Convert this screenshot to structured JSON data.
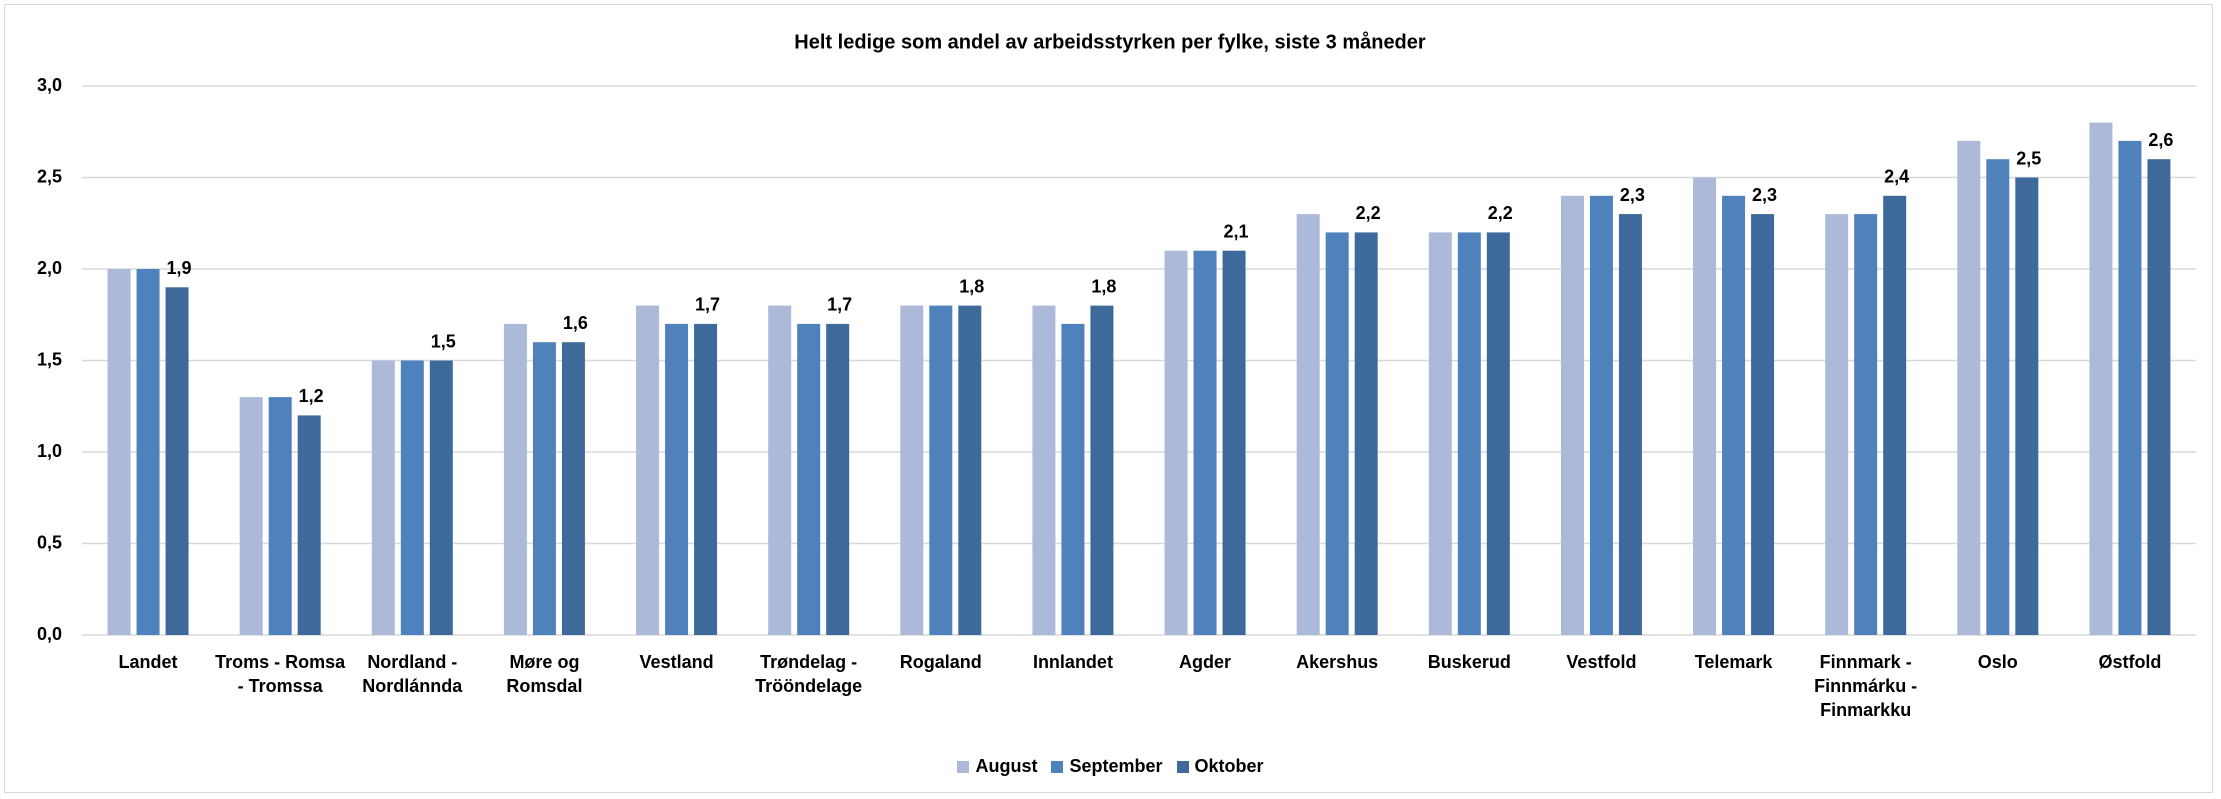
{
  "chart_data": {
    "type": "bar",
    "title": "Helt ledige som andel av arbeidsstyrken per fylke, siste 3 måneder",
    "categories": [
      "Landet",
      "Troms - Romsa - Tromssa",
      "Nordland - Nordlánnda",
      "Møre og Romsdal",
      "Vestland",
      "Trøndelag - Trööndelage",
      "Rogaland",
      "Innlandet",
      "Agder",
      "Akershus",
      "Buskerud",
      "Vestfold",
      "Telemark",
      "Finnmark - Finnmárku - Finmarkku",
      "Oslo",
      "Østfold"
    ],
    "series": [
      {
        "name": "August",
        "color": "#adb9d8",
        "values": [
          2.0,
          1.3,
          1.5,
          1.7,
          1.8,
          1.8,
          1.8,
          1.8,
          2.1,
          2.3,
          2.2,
          2.4,
          2.5,
          2.3,
          2.7,
          2.8
        ]
      },
      {
        "name": "September",
        "color": "#4f81bd",
        "values": [
          2.0,
          1.3,
          1.5,
          1.6,
          1.7,
          1.7,
          1.8,
          1.7,
          2.1,
          2.2,
          2.2,
          2.4,
          2.4,
          2.3,
          2.6,
          2.7
        ]
      },
      {
        "name": "Oktober",
        "color": "#3e6a9b",
        "values": [
          1.9,
          1.2,
          1.5,
          1.6,
          1.7,
          1.7,
          1.8,
          1.8,
          2.1,
          2.2,
          2.2,
          2.3,
          2.3,
          2.4,
          2.5,
          2.6
        ],
        "value_labels": [
          "1,9",
          "1,2",
          "1,5",
          "1,6",
          "1,7",
          "1,7",
          "1,8",
          "1,8",
          "2,1",
          "2,2",
          "2,2",
          "2,3",
          "2,3",
          "2,4",
          "2,5",
          "2,6"
        ]
      }
    ],
    "ylim": [
      0,
      3
    ],
    "yticks": [
      {
        "value": 0,
        "label": "0,0"
      },
      {
        "value": 0.5,
        "label": "0,5"
      },
      {
        "value": 1,
        "label": "1,0"
      },
      {
        "value": 1.5,
        "label": "1,5"
      },
      {
        "value": 2,
        "label": "2,0"
      },
      {
        "value": 2.5,
        "label": "2,5"
      },
      {
        "value": 3,
        "label": "3,0"
      }
    ],
    "grid": true,
    "legend": "bottom"
  }
}
